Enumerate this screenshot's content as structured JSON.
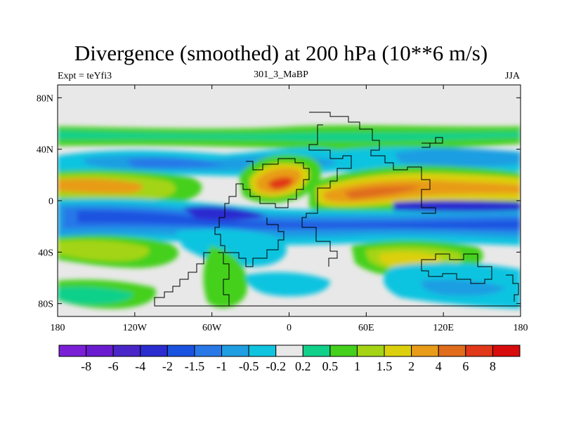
{
  "title": "Divergence (smoothed) at 200 hPa (10**6 m/s)",
  "subtitle_left": "Expt = teYfi3",
  "subtitle_center": "301_3_MaBP",
  "subtitle_right": "JJA",
  "map": {
    "projection": "cylindrical-equidistant",
    "lon_range": [
      -180,
      180
    ],
    "lat_range": [
      -90,
      90
    ],
    "x_ticks": [
      {
        "lon": -180,
        "label": "180"
      },
      {
        "lon": -120,
        "label": "120W"
      },
      {
        "lon": -60,
        "label": "60W"
      },
      {
        "lon": 0,
        "label": "0"
      },
      {
        "lon": 60,
        "label": "60E"
      },
      {
        "lon": 120,
        "label": "120E"
      },
      {
        "lon": 180,
        "label": "180"
      }
    ],
    "y_ticks": [
      {
        "lat": 80,
        "label": "80N"
      },
      {
        "lat": 40,
        "label": "40N"
      },
      {
        "lat": 0,
        "label": "0"
      },
      {
        "lat": -40,
        "label": "40S"
      },
      {
        "lat": -80,
        "label": "80S"
      }
    ]
  },
  "colorbar": {
    "colors": [
      "#7a1fd6",
      "#6a1bd0",
      "#4a25c8",
      "#2a2cd0",
      "#1a52e0",
      "#2878e8",
      "#1f9ee2",
      "#10c4e0",
      "#e8e8e8",
      "#10d08a",
      "#44d01c",
      "#a4d414",
      "#dcd00c",
      "#e89c18",
      "#e06c1c",
      "#e03818",
      "#d80c0c"
    ],
    "labels": [
      "-8",
      "-6",
      "-4",
      "-2",
      "-1.5",
      "-1",
      "-0.5",
      "-0.2",
      "0.2",
      "0.5",
      "1",
      "1.5",
      "2",
      "4",
      "6",
      "8"
    ]
  },
  "field": {
    "units": "10**6 m/s",
    "level": "200 hPa",
    "variable": "Divergence (smoothed)",
    "features": [
      {
        "lon": -120,
        "lat": 15,
        "value": 3
      },
      {
        "lon": -30,
        "lat": 12,
        "value": 4
      },
      {
        "lon": 60,
        "lat": 5,
        "value": 3
      },
      {
        "lon": 150,
        "lat": 10,
        "value": 2
      },
      {
        "lon": -100,
        "lat": -20,
        "value": -2
      },
      {
        "lon": 20,
        "lat": -20,
        "value": -3
      },
      {
        "lon": 130,
        "lat": -20,
        "value": -2
      },
      {
        "lon": -150,
        "lat": -35,
        "value": 1.5
      },
      {
        "lon": 90,
        "lat": -45,
        "value": 1.5
      },
      {
        "lon": -80,
        "lat": 35,
        "value": -1.5
      },
      {
        "lon": 20,
        "lat": -65,
        "value": -1
      },
      {
        "lon": 110,
        "lat": -65,
        "value": -1
      }
    ]
  }
}
